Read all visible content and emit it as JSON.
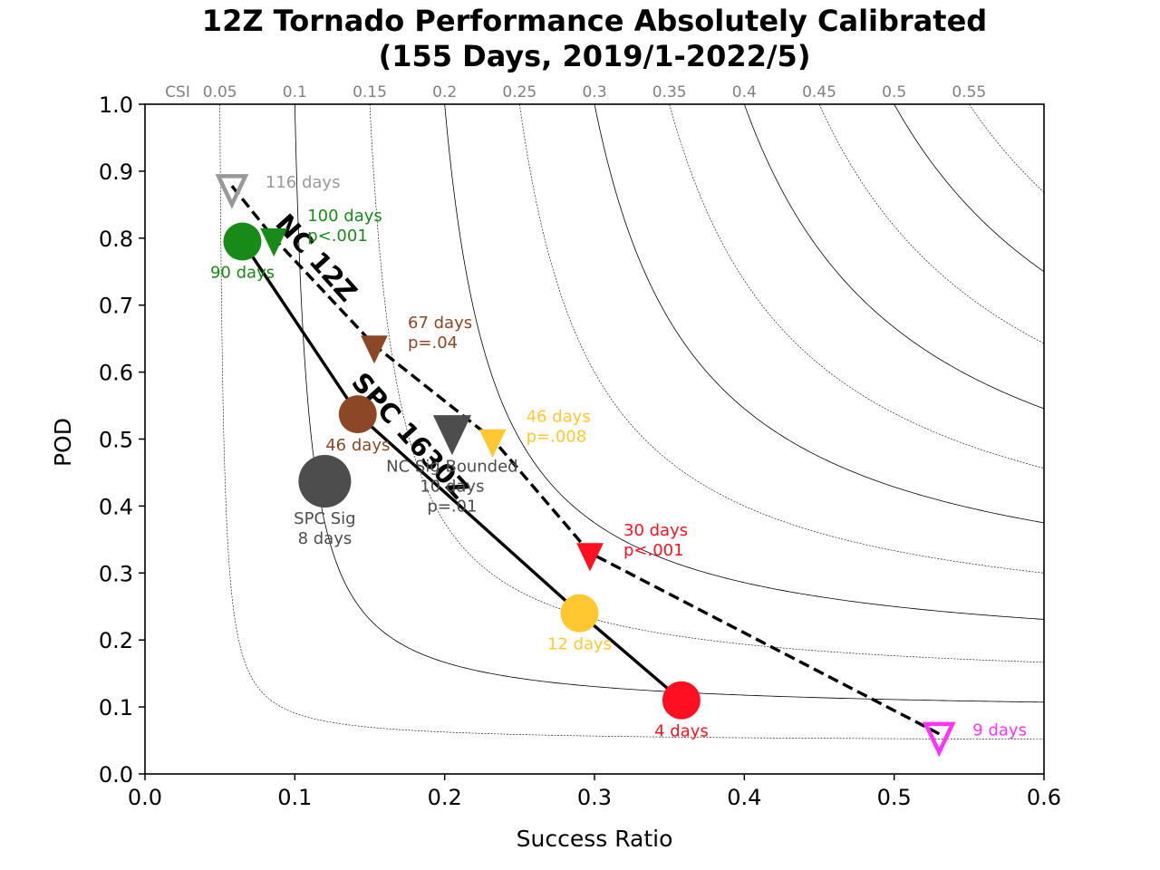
{
  "chart_data": {
    "type": "scatter",
    "title": [
      "12Z Tornado Performance Absolutely Calibrated",
      "(155 Days, 2019/1-2022/5)"
    ],
    "xlabel": "Success Ratio",
    "ylabel": "POD",
    "xlim": [
      0.0,
      0.6
    ],
    "ylim": [
      0.0,
      1.0
    ],
    "xticks": [
      "0.0",
      "0.1",
      "0.2",
      "0.3",
      "0.4",
      "0.5",
      "0.6"
    ],
    "yticks": [
      "0.0",
      "0.1",
      "0.2",
      "0.3",
      "0.4",
      "0.5",
      "0.6",
      "0.7",
      "0.8",
      "0.9",
      "1.0"
    ],
    "csi_axis_label": "CSI",
    "csi_contours": [
      {
        "value": 0.05,
        "label": "0.05",
        "style": "dashed"
      },
      {
        "value": 0.1,
        "label": "0.1",
        "style": "solid"
      },
      {
        "value": 0.15,
        "label": "0.15",
        "style": "dashed"
      },
      {
        "value": 0.2,
        "label": "0.2",
        "style": "solid"
      },
      {
        "value": 0.25,
        "label": "0.25",
        "style": "dashed"
      },
      {
        "value": 0.3,
        "label": "0.3",
        "style": "solid"
      },
      {
        "value": 0.35,
        "label": "0.35",
        "style": "dashed"
      },
      {
        "value": 0.4,
        "label": "0.4",
        "style": "solid"
      },
      {
        "value": 0.45,
        "label": "0.45",
        "style": "dashed"
      },
      {
        "value": 0.5,
        "label": "0.5",
        "style": "solid"
      },
      {
        "value": 0.55,
        "label": "0.55",
        "style": "dashed"
      }
    ],
    "series": [
      {
        "name": "NC 12Z",
        "style": "dashed",
        "marker": "triangle-down",
        "points": [
          {
            "x": 0.058,
            "y": 0.878,
            "color": "#999999",
            "hollow": true,
            "size": "medium",
            "lines": [
              "116 days"
            ]
          },
          {
            "x": 0.086,
            "y": 0.8,
            "color": "#178a17",
            "hollow": false,
            "size": "medium",
            "lines": [
              "100 days",
              "p<.001"
            ]
          },
          {
            "x": 0.153,
            "y": 0.64,
            "color": "#8b4726",
            "hollow": false,
            "size": "medium",
            "lines": [
              "67 days",
              "p=.04"
            ]
          },
          {
            "x": 0.232,
            "y": 0.5,
            "color": "#ffc830",
            "hollow": false,
            "size": "medium",
            "lines": [
              "46 days",
              "p=.008"
            ]
          },
          {
            "x": 0.297,
            "y": 0.33,
            "color": "#ff1020",
            "hollow": false,
            "size": "medium",
            "lines": [
              "30 days",
              "p<.001"
            ]
          },
          {
            "x": 0.53,
            "y": 0.06,
            "color": "#ff33ff",
            "hollow": true,
            "size": "medium",
            "lines": [
              "9 days"
            ]
          }
        ]
      },
      {
        "name": "SPC 1630Z",
        "style": "solid",
        "marker": "circle",
        "points": [
          {
            "x": 0.065,
            "y": 0.795,
            "color": "#178a17",
            "hollow": false,
            "size": "medium",
            "lines": [
              "90 days"
            ]
          },
          {
            "x": 0.142,
            "y": 0.537,
            "color": "#8b4726",
            "hollow": false,
            "size": "medium",
            "lines": [
              "46 days"
            ]
          },
          {
            "x": 0.29,
            "y": 0.24,
            "color": "#ffc830",
            "hollow": false,
            "size": "medium",
            "lines": [
              "12 days"
            ]
          },
          {
            "x": 0.358,
            "y": 0.11,
            "color": "#ff1020",
            "hollow": false,
            "size": "medium",
            "lines": [
              "4 days"
            ]
          }
        ]
      }
    ],
    "extra_points": [
      {
        "name": "NC Sig Bounded",
        "marker": "triangle-down",
        "x": 0.205,
        "y": 0.515,
        "color": "#4d4d4d",
        "hollow": false,
        "size": "large",
        "lines": [
          "NC Sig Bounded",
          "10 days",
          "p=.01"
        ]
      },
      {
        "name": "SPC Sig",
        "marker": "circle",
        "x": 0.12,
        "y": 0.437,
        "color": "#4d4d4d",
        "hollow": false,
        "size": "large",
        "lines": [
          "SPC Sig",
          "8 days"
        ]
      }
    ],
    "line_labels": [
      {
        "text": "NC 12Z",
        "series": "NC 12Z"
      },
      {
        "text": "SPC 1630Z",
        "series": "SPC 1630Z"
      }
    ]
  }
}
